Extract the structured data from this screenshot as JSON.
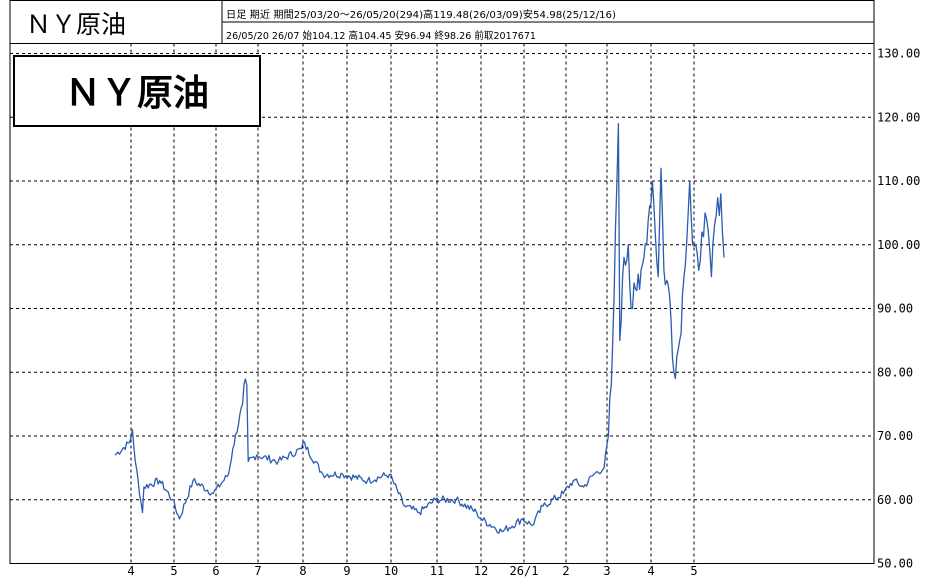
{
  "header": {
    "symbol": "ＮＹ原油",
    "line1": "日足 期近 期間25/03/20～26/05/20(294)高119.48(26/03/09)安54.98(25/12/16)",
    "line2": "26/05/20 26/07 始104.12 高104.45 安96.94 終98.26 前取2017671"
  },
  "label_box": {
    "text": "ＮＹ原油"
  },
  "chart_data": {
    "type": "line",
    "title": "ＮＹ原油",
    "ylim": [
      50,
      130
    ],
    "yticks": [
      50,
      60,
      70,
      80,
      90,
      100,
      110,
      120,
      130
    ],
    "ytick_labels": [
      "50.00",
      "60.00",
      "70.00",
      "80.00",
      "90.00",
      "100.00",
      "110.00",
      "120.00",
      "130.00"
    ],
    "xticks": [
      "4",
      "5",
      "6",
      "7",
      "8",
      "9",
      "10",
      "11",
      "12",
      "26/1",
      "2",
      "3",
      "4",
      "5"
    ],
    "grid": true,
    "series": [
      {
        "color": "#2b5cb0",
        "x": [
          "25/03/20",
          "25/03/31",
          "25/04/02",
          "25/04/04",
          "25/04/09",
          "25/04/10",
          "25/04/21",
          "25/04/30",
          "25/05/05",
          "25/05/15",
          "25/05/30",
          "25/06/10",
          "25/06/13",
          "25/06/20",
          "25/06/23",
          "25/06/24",
          "25/06/30",
          "25/07/15",
          "25/07/31",
          "25/08/01",
          "25/08/15",
          "25/08/29",
          "25/09/15",
          "25/09/30",
          "25/10/10",
          "25/10/20",
          "25/10/31",
          "25/11/14",
          "25/11/28",
          "25/12/01",
          "25/12/16",
          "25/12/31",
          "26/01/07",
          "26/01/15",
          "26/01/30",
          "26/02/06",
          "26/02/13",
          "26/02/20",
          "26/02/27",
          "26/03/02",
          "26/03/04",
          "26/03/06",
          "26/03/09",
          "26/03/10",
          "26/03/12",
          "26/03/16",
          "26/03/18",
          "26/03/20",
          "26/03/24",
          "26/03/27",
          "26/03/31",
          "26/04/02",
          "26/04/06",
          "26/04/08",
          "26/04/10",
          "26/04/14",
          "26/04/17",
          "26/04/21",
          "26/04/24",
          "26/04/28",
          "26/04/30",
          "26/05/04",
          "26/05/06",
          "26/05/08",
          "26/05/12",
          "26/05/14",
          "26/05/18",
          "26/05/20"
        ],
        "values": [
          67,
          69,
          71,
          66,
          58,
          62,
          63,
          60,
          57,
          63,
          61,
          64,
          68,
          75,
          78,
          66,
          67,
          66,
          68,
          69,
          64,
          64,
          63,
          64,
          59,
          58,
          60,
          60,
          58,
          57,
          55,
          57,
          56,
          59,
          61,
          63,
          62,
          64,
          65,
          70,
          78,
          92,
          119,
          85,
          95,
          100,
          90,
          94,
          93,
          98,
          106,
          110,
          95,
          112,
          96,
          92,
          80,
          85,
          95,
          110,
          100,
          96,
          102,
          105,
          95,
          103,
          108,
          98
        ]
      }
    ]
  }
}
